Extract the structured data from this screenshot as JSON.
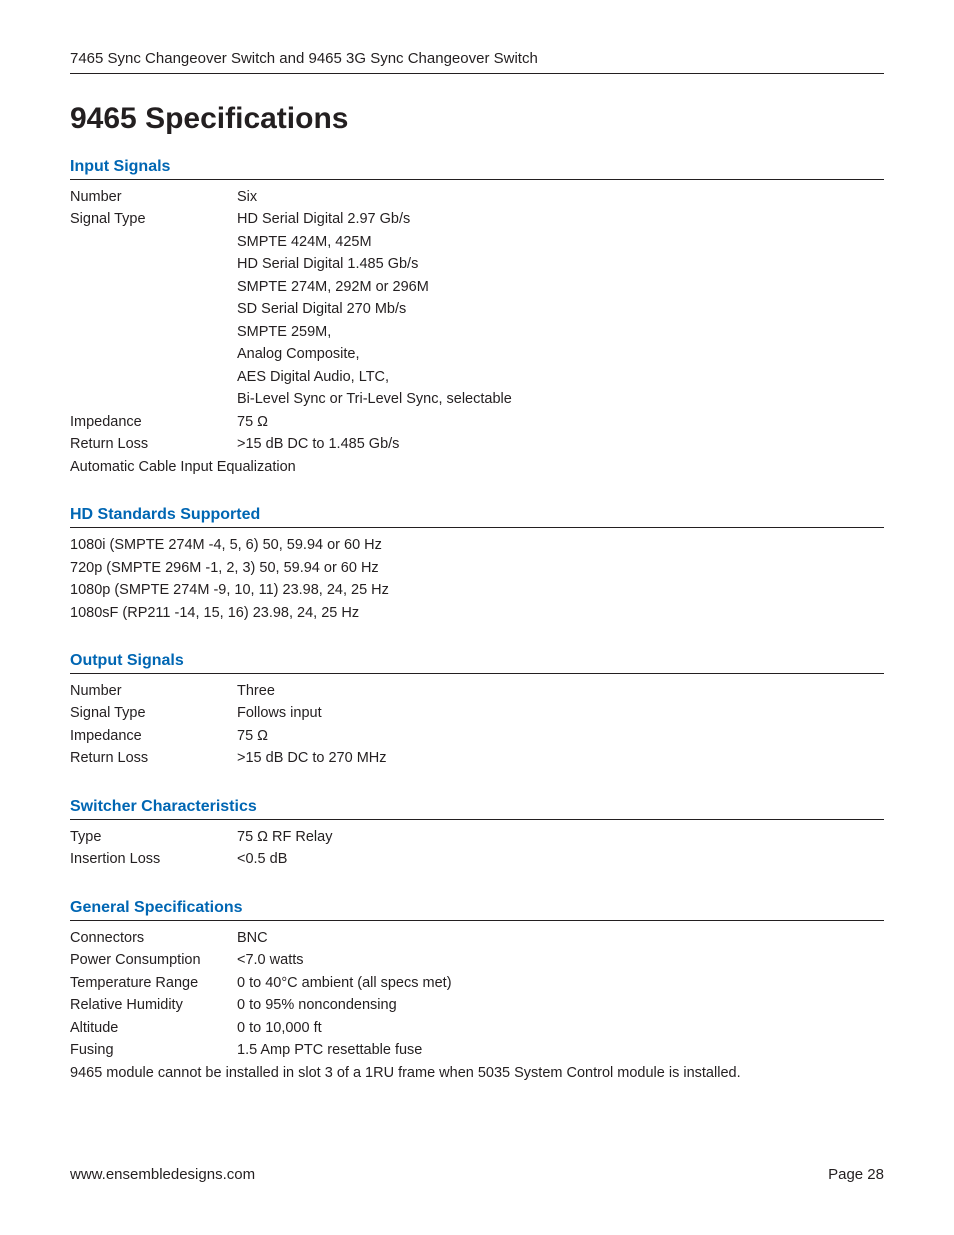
{
  "header": {
    "title": "7465 Sync Changeover Switch and 9465 3G Sync Changeover Switch"
  },
  "page_title": "9465 Specifications",
  "sections": {
    "input_signals": {
      "title": "Input Signals",
      "rows": [
        {
          "label": "Number",
          "value": "Six"
        },
        {
          "label": "Signal Type",
          "value": "HD Serial Digital 2.97 Gb/s"
        }
      ],
      "signal_type_extra": [
        "SMPTE 424M, 425M",
        "HD Serial Digital 1.485 Gb/s",
        "SMPTE 274M, 292M or 296M",
        "SD Serial Digital 270 Mb/s",
        "SMPTE 259M,",
        "Analog Composite,",
        "AES Digital Audio, LTC,",
        "Bi-Level Sync or Tri-Level Sync, selectable"
      ],
      "rows2": [
        {
          "label": "Impedance",
          "value": "75 Ω"
        },
        {
          "label": "Return Loss",
          "value": ">15 dB DC to 1.485 Gb/s"
        }
      ],
      "full": "Automatic Cable Input Equalization"
    },
    "hd_standards": {
      "title": "HD Standards Supported",
      "lines": [
        "1080i (SMPTE 274M -4, 5, 6) 50, 59.94 or 60 Hz",
        "720p (SMPTE 296M -1, 2, 3) 50, 59.94 or 60 Hz",
        "1080p (SMPTE 274M -9, 10, 11) 23.98, 24, 25 Hz",
        "1080sF (RP211 -14, 15, 16) 23.98, 24, 25 Hz"
      ]
    },
    "output_signals": {
      "title": "Output Signals",
      "rows": [
        {
          "label": "Number",
          "value": "Three"
        },
        {
          "label": "Signal Type",
          "value": "Follows input"
        },
        {
          "label": "Impedance",
          "value": "75 Ω"
        },
        {
          "label": "Return Loss",
          "value": ">15 dB DC to 270 MHz"
        }
      ]
    },
    "switcher": {
      "title": "Switcher Characteristics",
      "rows": [
        {
          "label": "Type",
          "value": "75 Ω RF Relay"
        },
        {
          "label": "Insertion Loss",
          "value": "<0.5 dB"
        }
      ]
    },
    "general": {
      "title": "General Specifications",
      "rows": [
        {
          "label": "Connectors",
          "value": "BNC"
        },
        {
          "label": "Power Consumption",
          "value": "<7.0 watts"
        },
        {
          "label": "Temperature Range",
          "value": "0 to 40°C ambient (all specs met)"
        },
        {
          "label": "Relative Humidity",
          "value": "0 to 95% noncondensing"
        },
        {
          "label": "Altitude",
          "value": "0 to 10,000 ft"
        },
        {
          "label": "Fusing",
          "value": "1.5 Amp PTC resettable fuse"
        }
      ],
      "full": "9465 module cannot be installed in slot 3 of a 1RU frame when 5035 System Control module is installed."
    }
  },
  "footer": {
    "url": "www.ensembledesigns.com",
    "page": "Page 28"
  },
  "colors": {
    "accent": "#0066b3",
    "text": "#231f20",
    "rule": "#231f20",
    "background": "#ffffff"
  },
  "fontsizes": {
    "h1": 30,
    "section_title": 16,
    "body": 14.5,
    "header": 15,
    "footer": 15
  }
}
